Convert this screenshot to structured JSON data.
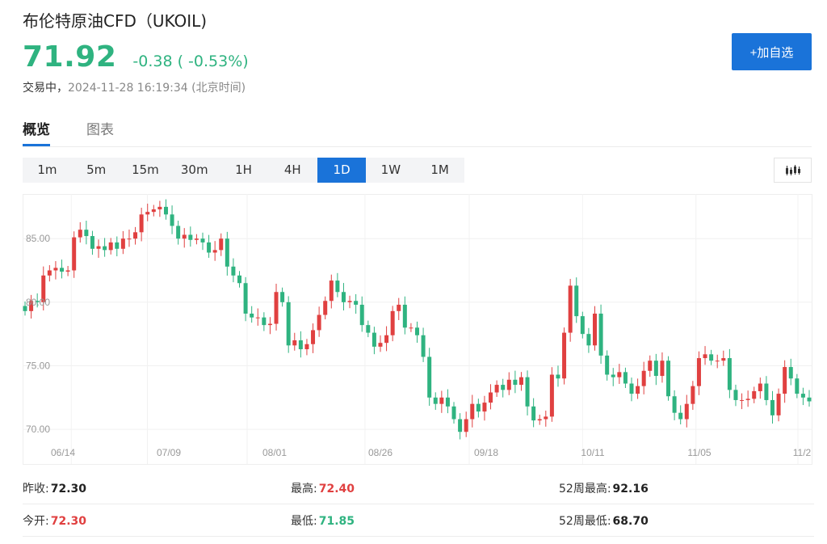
{
  "header": {
    "title": "布伦特原油CFD（UKOIL)",
    "price": "71.92",
    "change": "-0.38 ( -0.53%)",
    "status_label": "交易中，",
    "timestamp": "2024-11-28 16:19:34  (北京时间)",
    "add_watchlist_label": "+加自选"
  },
  "tabs": [
    {
      "label": "概览",
      "active": true
    },
    {
      "label": "图表",
      "active": false
    }
  ],
  "intervals": [
    {
      "label": "1m"
    },
    {
      "label": "5m"
    },
    {
      "label": "15m"
    },
    {
      "label": "30m"
    },
    {
      "label": "1H"
    },
    {
      "label": "4H"
    },
    {
      "label": "1D",
      "active": true
    },
    {
      "label": "1W"
    },
    {
      "label": "1M"
    }
  ],
  "chart_type_icon": "candlestick-icon",
  "colors": {
    "accent": "#1a73d9",
    "up": "#e04040",
    "down": "#2fb380"
  },
  "chart_data": {
    "type": "candlestick",
    "y_ticks": [
      "85.00",
      "80.00",
      "75.00",
      "70.00"
    ],
    "x_ticks": [
      "06/14",
      "07/09",
      "08/01",
      "08/26",
      "09/18",
      "10/11",
      "11/05",
      "11/2"
    ],
    "ylim": [
      68.8,
      88.0
    ],
    "closes": [
      79.3,
      80.1,
      80.0,
      82.1,
      82.5,
      82.7,
      82.4,
      82.5,
      85.1,
      85.7,
      85.2,
      84.2,
      84.4,
      84.1,
      84.7,
      84.2,
      85.0,
      85.0,
      85.5,
      86.9,
      87.1,
      87.3,
      87.5,
      86.9,
      86.0,
      85.0,
      85.3,
      84.9,
      85.0,
      84.7,
      83.9,
      84.1,
      85.0,
      82.8,
      82.1,
      81.5,
      79.1,
      78.8,
      78.8,
      78.2,
      78.3,
      80.8,
      80.0,
      76.6,
      77.0,
      76.3,
      76.7,
      77.8,
      79.0,
      80.1,
      81.7,
      80.8,
      80.0,
      80.1,
      79.8,
      78.2,
      77.6,
      76.5,
      76.8,
      77.4,
      79.3,
      79.8,
      78.0,
      78.0,
      77.4,
      75.7,
      72.5,
      72.0,
      72.5,
      71.8,
      70.8,
      69.8,
      70.8,
      72.0,
      71.4,
      72.1,
      72.9,
      73.5,
      73.1,
      73.9,
      73.5,
      74.1,
      71.8,
      70.7,
      70.8,
      71.0,
      74.3,
      74.0,
      77.6,
      81.3,
      78.9,
      77.5,
      76.6,
      79.1,
      75.8,
      74.3,
      74.1,
      74.5,
      73.6,
      72.8,
      73.4,
      74.6,
      75.4,
      74.2,
      75.4,
      72.6,
      71.3,
      70.8,
      72.0,
      73.4,
      75.6,
      75.9,
      75.4,
      75.4,
      75.6,
      73.1,
      72.3,
      72.3,
      72.4,
      73.0,
      73.6,
      72.3,
      71.1,
      72.8,
      74.9,
      74.0,
      72.8,
      72.5,
      72.2
    ]
  },
  "stats": {
    "prev_close_label": "昨收:",
    "prev_close": "72.30",
    "high_label": "最高:",
    "high": "72.40",
    "high_52w_label": "52周最高:",
    "high_52w": "92.16",
    "open_label": "今开:",
    "open": "72.30",
    "low_label": "最低:",
    "low": "71.85",
    "low_52w_label": "52周最低:",
    "low_52w": "68.70"
  }
}
